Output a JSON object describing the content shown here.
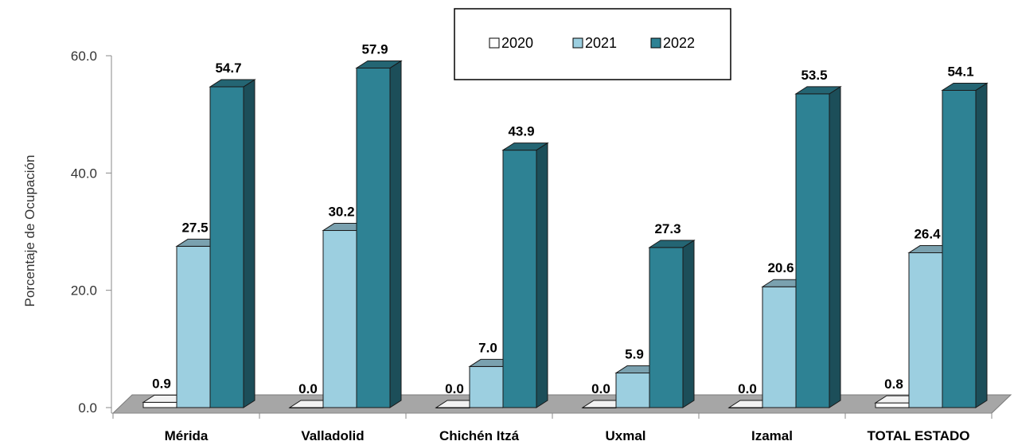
{
  "chart_data": {
    "type": "bar",
    "title": "",
    "xlabel": "",
    "ylabel": "Porcentaje de Ocupación",
    "ylim": [
      0,
      60
    ],
    "yticks": [
      "0.0",
      "20.0",
      "40.0",
      "60.0"
    ],
    "categories": [
      "Mérida",
      "Valladolid",
      "Chichén Itzá",
      "Uxmal",
      "Izamal",
      "TOTAL ESTADO"
    ],
    "series": [
      {
        "name": "2020",
        "color": "#ffffff",
        "values": [
          0.9,
          0.0,
          0.0,
          0.0,
          0.0,
          0.8
        ],
        "labels": [
          "0.9",
          "0.0",
          "0.0",
          "0.0",
          "0.0",
          "0.8"
        ]
      },
      {
        "name": "2021",
        "color": "#9ccfe0",
        "values": [
          27.5,
          30.2,
          7.0,
          5.9,
          20.6,
          26.4
        ],
        "labels": [
          "27.5",
          "30.2",
          "7.0",
          "5.9",
          "20.6",
          "26.4"
        ]
      },
      {
        "name": "2022",
        "color": "#2e8294",
        "values": [
          54.7,
          57.9,
          43.9,
          27.3,
          53.5,
          54.1
        ],
        "labels": [
          "54.7",
          "57.9",
          "43.9",
          "27.3",
          "53.5",
          "54.1"
        ]
      }
    ],
    "legend": "top-center",
    "grid": false,
    "style": "3d-column"
  }
}
